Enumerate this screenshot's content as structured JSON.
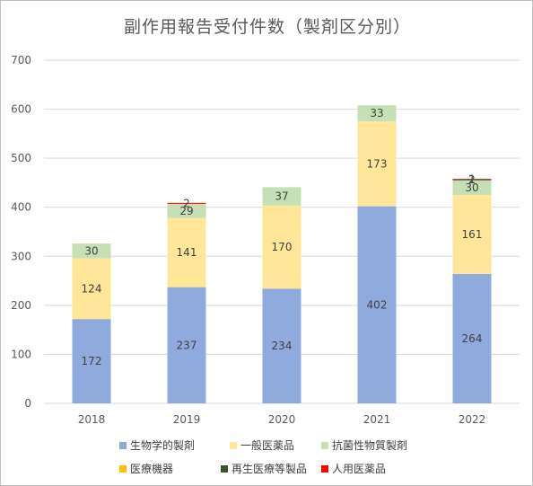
{
  "chart_data": {
    "type": "bar",
    "stacked": true,
    "title": "副作用報告受付件数（製剤区分別）",
    "categories": [
      "2018",
      "2019",
      "2020",
      "2021",
      "2022"
    ],
    "ylim": [
      0,
      700
    ],
    "yticks": [
      0,
      100,
      200,
      300,
      400,
      500,
      600,
      700
    ],
    "grid": true,
    "legend_position": "bottom",
    "series": [
      {
        "name": "生物学的製剤",
        "color": "#8faadc",
        "values": [
          172,
          237,
          234,
          402,
          264
        ]
      },
      {
        "name": "一般医薬品",
        "color": "#ffe699",
        "values": [
          124,
          141,
          170,
          173,
          161
        ]
      },
      {
        "name": "抗菌性物質製剤",
        "color": "#c5e0b4",
        "values": [
          30,
          29,
          37,
          33,
          30
        ]
      },
      {
        "name": "医療機器",
        "color": "#ffc000",
        "values": [
          0,
          0,
          0,
          0,
          0
        ]
      },
      {
        "name": "再生医療等製品",
        "color": "#375623",
        "values": [
          0,
          0,
          0,
          0,
          2
        ]
      },
      {
        "name": "人用医薬品",
        "color": "#ff0000",
        "values": [
          0,
          2,
          0,
          0,
          1
        ]
      }
    ]
  }
}
